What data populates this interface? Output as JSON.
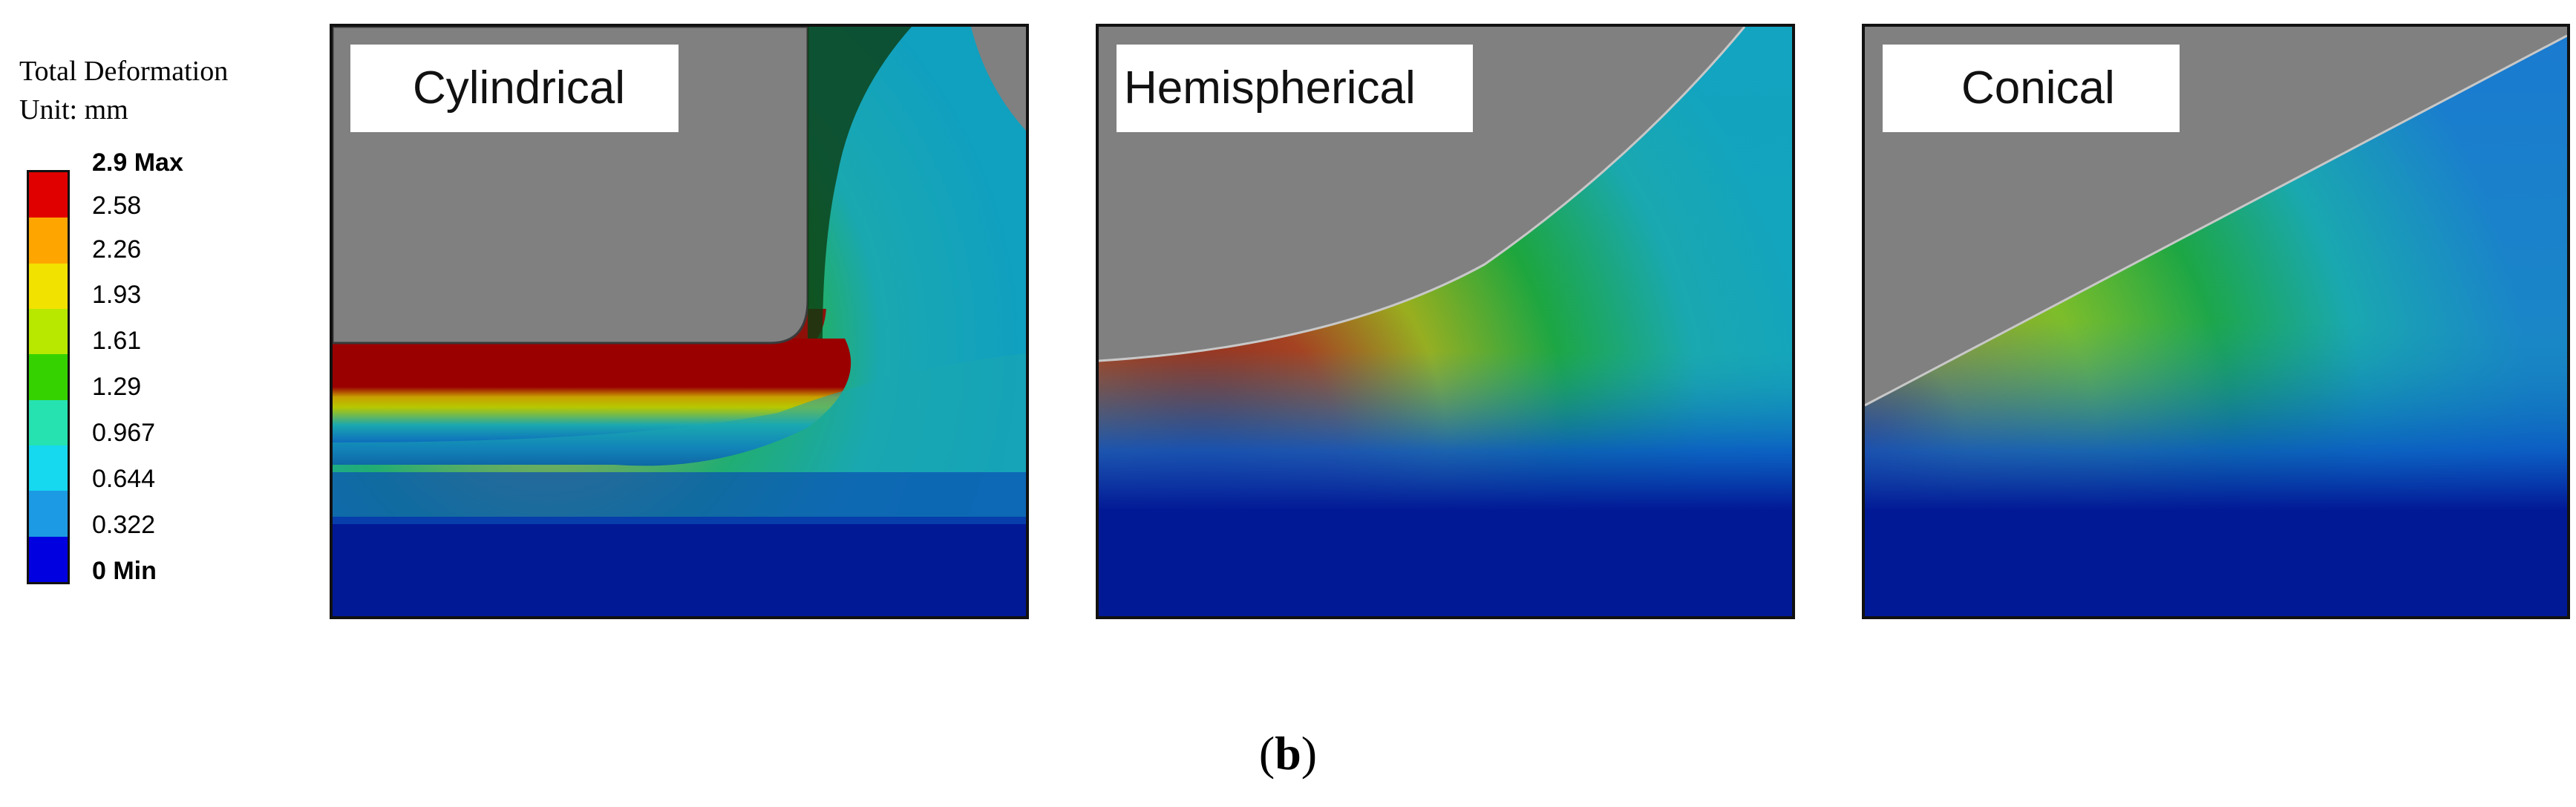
{
  "legend": {
    "title_line1": "Total Deformation",
    "title_line2": "Unit: mm",
    "max_label": "2.9 Max",
    "ticks": [
      "2.58",
      "2.26",
      "1.93",
      "1.61",
      "1.29",
      "0.967",
      "0.644",
      "0.322"
    ],
    "min_label": "0 Min",
    "colors": [
      "#e00000",
      "#ffa500",
      "#f2e200",
      "#b8e800",
      "#36d200",
      "#26e2b0",
      "#16d8ee",
      "#1c9ae4",
      "#0000e0"
    ]
  },
  "panels": [
    {
      "label": "Cylindrical"
    },
    {
      "label": "Hemispherical"
    },
    {
      "label": "Conical"
    }
  ],
  "caption": {
    "open": "(",
    "letter": "b",
    "close": ")"
  },
  "colors": {
    "indenter": "#808080",
    "max_deformation": "#9a0000",
    "high_deformation": "#d7a300",
    "mid_deformation": "#16a51c",
    "low_deformation": "#1aa8b0",
    "base": "#021996"
  }
}
